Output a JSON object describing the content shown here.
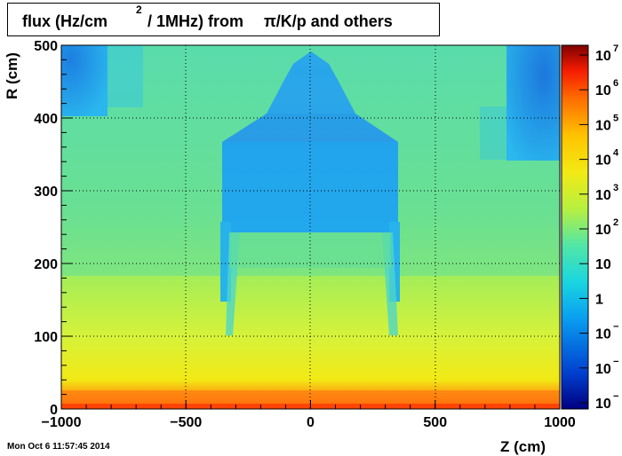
{
  "title": {
    "part1": "flux (Hz/cm",
    "superscript": "2",
    "part2": "/ 1MHz) from",
    "part3": "π/K/p and others"
  },
  "timestamp": "Mon Oct  6 11:57:45 2014",
  "chart_data": {
    "type": "heatmap",
    "title": "flux (Hz/cm2 / 1MHz) from π/K/p and others",
    "xlabel": "Z (cm)",
    "ylabel": "R (cm)",
    "xlim": [
      -1000,
      1000
    ],
    "ylim": [
      0,
      500
    ],
    "x_ticks": [
      -1000,
      -500,
      0,
      500,
      1000
    ],
    "x_tick_labels": [
      "−1000",
      "−500",
      "0",
      "500",
      "1000"
    ],
    "y_ticks": [
      0,
      100,
      200,
      300,
      400,
      500
    ],
    "y_tick_labels": [
      "0",
      "100",
      "200",
      "300",
      "400",
      "500"
    ],
    "grid": true,
    "color_scale": "log",
    "zlim": [
      0.001,
      10000000
    ],
    "colorbar_ticks": [
      {
        "label": "10",
        "exp": "7"
      },
      {
        "label": "10",
        "exp": "6"
      },
      {
        "label": "10",
        "exp": "5"
      },
      {
        "label": "10",
        "exp": "4"
      },
      {
        "label": "10",
        "exp": "3"
      },
      {
        "label": "10",
        "exp": "2"
      },
      {
        "label": "10",
        "exp": ""
      },
      {
        "label": "1",
        "exp": ""
      },
      {
        "label": "10",
        "exp": "−"
      },
      {
        "label": "10",
        "exp": "−"
      },
      {
        "label": "10",
        "exp": "−"
      }
    ],
    "colors": {
      "low": "#00007f",
      "mid_low": "#1aa5e8",
      "mid": "#6de37c",
      "mid_high": "#f2e915",
      "high": "#ff4e00",
      "max": "#7f0000"
    }
  }
}
